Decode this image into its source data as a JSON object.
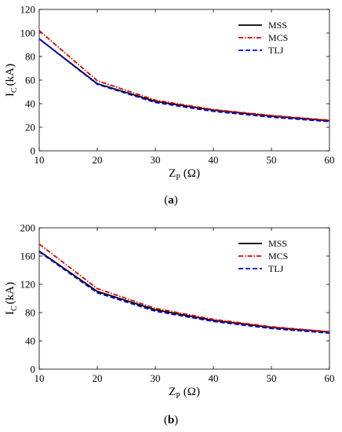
{
  "chart_data": [
    {
      "type": "line",
      "panel": "a",
      "caption_label": "a",
      "xlabel_main": "Z",
      "xlabel_sub": "P",
      "xlabel_unit": "(Ω)",
      "ylabel_main": "I",
      "ylabel_sub": "C",
      "ylabel_unit": "(kA)",
      "xlim": [
        10,
        60
      ],
      "ylim": [
        0,
        120
      ],
      "xticks": [
        10,
        20,
        30,
        40,
        50,
        60
      ],
      "yticks": [
        0,
        20,
        40,
        60,
        80,
        100,
        120
      ],
      "grid": false,
      "legend_position": "top-right",
      "x": [
        10,
        20,
        30,
        40,
        50,
        60
      ],
      "series": [
        {
          "name": "MSS",
          "color": "#000000",
          "style": "solid",
          "values": [
            95,
            57,
            42,
            34.5,
            29.5,
            25.5
          ]
        },
        {
          "name": "MCS",
          "color": "#e00000",
          "style": "dashdot",
          "values": [
            102,
            59.5,
            43,
            35,
            30,
            26
          ]
        },
        {
          "name": "TLJ",
          "color": "#0000e0",
          "style": "dashed",
          "values": [
            95,
            56.5,
            41,
            33.5,
            28.5,
            24.8
          ]
        }
      ]
    },
    {
      "type": "line",
      "panel": "b",
      "caption_label": "b",
      "xlabel_main": "Z",
      "xlabel_sub": "P",
      "xlabel_unit": "(Ω)",
      "ylabel_main": "I",
      "ylabel_sub": "C",
      "ylabel_unit": "(kA)",
      "xlim": [
        10,
        60
      ],
      "ylim": [
        0,
        200
      ],
      "xticks": [
        10,
        20,
        30,
        40,
        50,
        60
      ],
      "yticks": [
        0,
        40,
        80,
        120,
        160,
        200
      ],
      "grid": false,
      "legend_position": "top-right",
      "x": [
        10,
        20,
        30,
        40,
        50,
        60
      ],
      "series": [
        {
          "name": "MSS",
          "color": "#000000",
          "style": "solid",
          "values": [
            167,
            110,
            84,
            69,
            59,
            52.5
          ]
        },
        {
          "name": "MCS",
          "color": "#e00000",
          "style": "dashdot",
          "values": [
            177,
            114,
            86,
            70.5,
            60,
            53
          ]
        },
        {
          "name": "TLJ",
          "color": "#0000e0",
          "style": "dashed",
          "values": [
            166,
            108,
            82,
            67.5,
            57.5,
            51
          ]
        }
      ]
    }
  ]
}
